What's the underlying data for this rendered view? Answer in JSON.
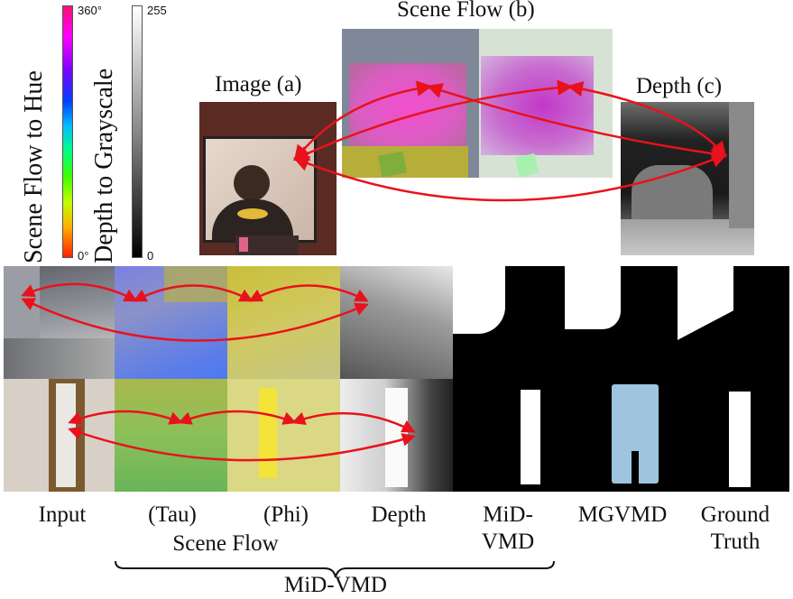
{
  "legend": {
    "scene_flow_label": "Scene Flow to Hue",
    "scene_flow_top": "360°",
    "scene_flow_bottom": "0°",
    "depth_label": "Depth to Grayscale",
    "depth_top": "255",
    "depth_bottom": "0"
  },
  "top_figure": {
    "image_caption": "Image (a)",
    "scene_flow_caption": "Scene Flow (b)",
    "depth_caption": "Depth (c)"
  },
  "columns": {
    "input": "Input",
    "tau": "(Tau)",
    "phi": "(Phi)",
    "depth": "Depth",
    "mid_vmd": "MiD-\nVMD",
    "mgvmd": "MGVMD",
    "ground_truth": "Ground\nTruth"
  },
  "group_labels": {
    "scene_flow": "Scene Flow",
    "method": "MiD-VMD"
  },
  "colors": {
    "arrow": "#e8121c",
    "mgvmd_mask": "#9fc4df"
  }
}
